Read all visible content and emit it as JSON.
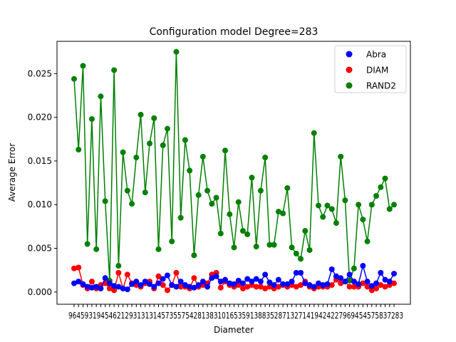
{
  "chart_data": {
    "type": "line",
    "title": "Configuration model Degree=283",
    "xlabel": "Diameter",
    "ylabel": "Average Error",
    "ylim": [
      -0.0014,
      0.0287
    ],
    "yticks": [
      0.0,
      0.005,
      0.01,
      0.015,
      0.02,
      0.025
    ],
    "ytick_labels": [
      "0.000",
      "0.005",
      "0.010",
      "0.015",
      "0.020",
      "0.025"
    ],
    "grid": false,
    "legend": {
      "position": "top-right",
      "entries": [
        "Abra",
        "DIAM",
        "RAND2"
      ]
    },
    "xtick_labels_text": "96459319454621293131314573557542813831016535913883528713271419424227969454575837283",
    "series": [
      {
        "name": "Abra",
        "color": "#0000ff",
        "values": [
          0.001,
          0.0012,
          0.0009,
          0.0006,
          0.0005,
          0.0006,
          0.0004,
          0.0016,
          0.001,
          0.0007,
          0.0006,
          0.0004,
          0.0003,
          0.0009,
          0.0012,
          0.0008,
          0.0012,
          0.0009,
          0.0006,
          0.001,
          0.0015,
          0.0019,
          0.0008,
          0.0006,
          0.0012,
          0.0008,
          0.0006,
          0.0005,
          0.0008,
          0.0012,
          0.0006,
          0.0016,
          0.0018,
          0.0012,
          0.0014,
          0.001,
          0.0009,
          0.0013,
          0.001,
          0.0015,
          0.0012,
          0.0015,
          0.0012,
          0.002,
          0.0011,
          0.0008,
          0.0014,
          0.0009,
          0.0009,
          0.0012,
          0.0022,
          0.0022,
          0.001,
          0.0008,
          0.0006,
          0.001,
          0.0008,
          0.0009,
          0.0026,
          0.0018,
          0.0016,
          0.0012,
          0.002,
          0.0012,
          0.0009,
          0.003,
          0.0012,
          0.0007,
          0.001,
          0.0022,
          0.0014,
          0.0012,
          0.0021
        ]
      },
      {
        "name": "DIAM",
        "color": "#ff0000",
        "values": [
          0.0027,
          0.0028,
          0.0008,
          0.0004,
          0.0012,
          0.0004,
          0.0008,
          0.001,
          0.0004,
          0.0002,
          0.0022,
          0.0004,
          0.002,
          0.001,
          0.0008,
          0.0006,
          0.001,
          0.0012,
          0.0004,
          0.0018,
          0.0008,
          0.0002,
          0.0008,
          0.0022,
          0.0006,
          0.0006,
          0.0004,
          0.0016,
          0.0006,
          0.0008,
          0.001,
          0.002,
          0.0022,
          0.0005,
          0.0012,
          0.0008,
          0.0006,
          0.0008,
          0.0004,
          0.0006,
          0.0008,
          0.0006,
          0.0006,
          0.0004,
          0.0006,
          0.0004,
          0.0006,
          0.0008,
          0.0006,
          0.0008,
          0.0006,
          0.0008,
          0.0012,
          0.0006,
          0.0004,
          0.0006,
          0.0006,
          0.0006,
          0.0008,
          0.0014,
          0.001,
          0.0012,
          0.0006,
          0.0006,
          0.0006,
          0.001,
          0.0006,
          0.0002,
          0.0004,
          0.0008,
          0.0006,
          0.0008,
          0.001
        ]
      },
      {
        "name": "RAND2",
        "color": "#008000",
        "values": [
          0.0244,
          0.0163,
          0.0259,
          0.0055,
          0.0198,
          0.0049,
          0.0224,
          0.0104,
          0.0013,
          0.0254,
          0.003,
          0.016,
          0.0116,
          0.0101,
          0.0154,
          0.0203,
          0.0114,
          0.017,
          0.0199,
          0.0049,
          0.0168,
          0.0187,
          0.0058,
          0.0275,
          0.0085,
          0.0174,
          0.0139,
          0.0042,
          0.0111,
          0.0155,
          0.0116,
          0.0101,
          0.0108,
          0.0067,
          0.0162,
          0.0089,
          0.0051,
          0.0103,
          0.007,
          0.0066,
          0.0131,
          0.0052,
          0.0116,
          0.0154,
          0.0054,
          0.0054,
          0.0092,
          0.009,
          0.0119,
          0.0051,
          0.0044,
          0.0038,
          0.007,
          0.0048,
          0.0182,
          0.0099,
          0.0086,
          0.0099,
          0.0095,
          0.0079,
          0.0155,
          0.0105,
          0.0013,
          0.0027,
          0.01,
          0.0083,
          0.0058,
          0.01,
          0.011,
          0.012,
          0.013,
          0.0095,
          0.01
        ]
      }
    ]
  }
}
